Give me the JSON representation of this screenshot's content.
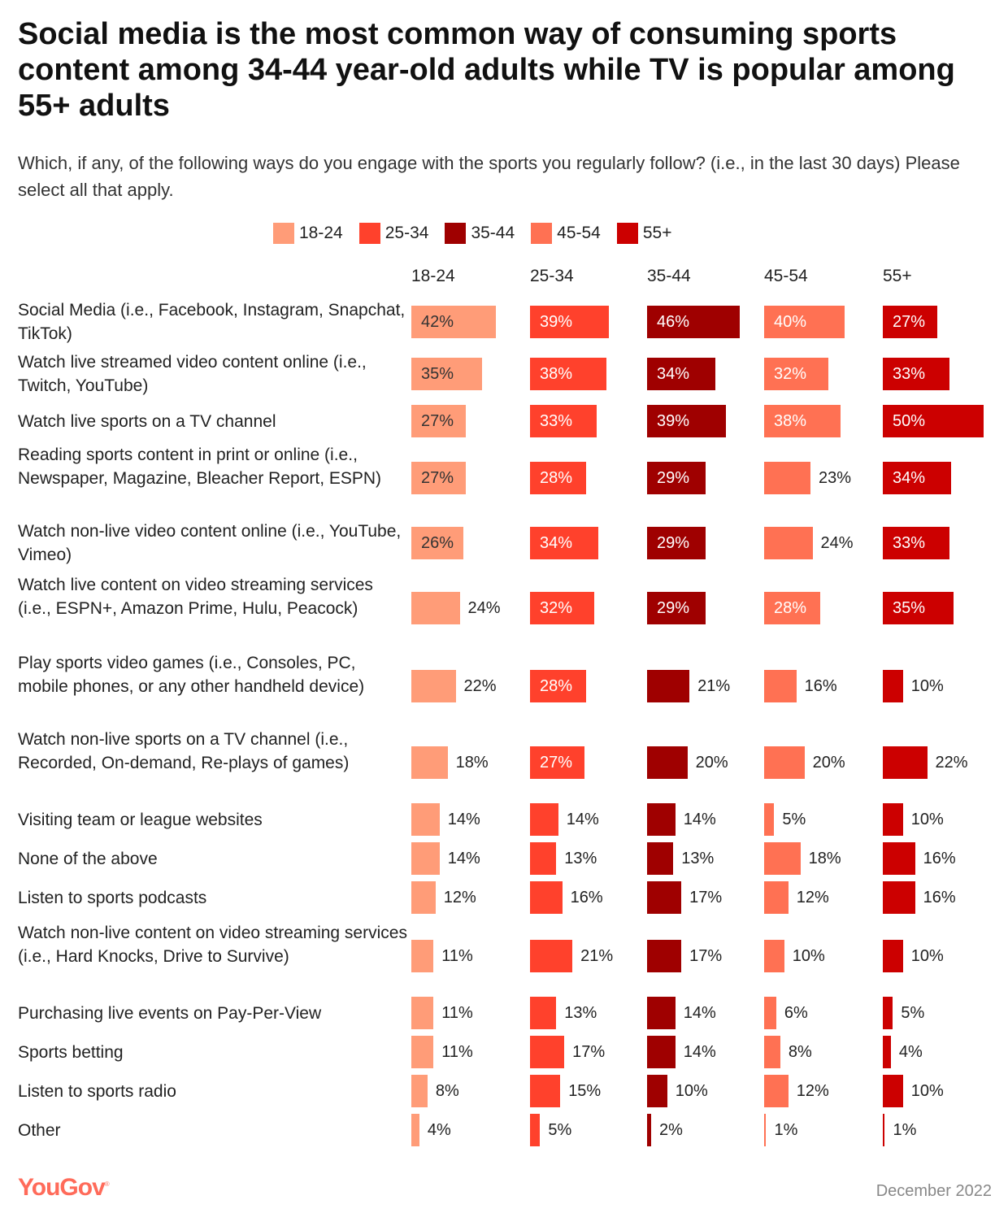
{
  "title": "Social media is the most common way of consuming sports content among 34-44 year-old adults while TV is popular among 55+ adults",
  "subtitle": "Which, if any, of the following ways do you engage with the sports you regularly follow? (i.e., in the last 30 days) Please select all that apply.",
  "footer": {
    "logo": "YouGov",
    "date": "December 2022"
  },
  "chart_data": {
    "type": "bar",
    "orientation": "horizontal-small-multiples",
    "title": "Social media is the most common way of consuming sports content among 34-44 year-old adults while TV is popular among 55+ adults",
    "legend_position": "top",
    "series": [
      {
        "name": "18-24",
        "color": "#FF9C78",
        "values": [
          42,
          35,
          27,
          27,
          26,
          24,
          22,
          18,
          14,
          14,
          12,
          11,
          11,
          11,
          8,
          4
        ]
      },
      {
        "name": "25-34",
        "color": "#FF412C",
        "values": [
          39,
          38,
          33,
          28,
          34,
          32,
          28,
          27,
          14,
          13,
          16,
          21,
          13,
          17,
          15,
          5
        ]
      },
      {
        "name": "35-44",
        "color": "#9F0000",
        "values": [
          46,
          34,
          39,
          29,
          29,
          29,
          21,
          20,
          14,
          13,
          17,
          17,
          14,
          14,
          10,
          2
        ]
      },
      {
        "name": "45-54",
        "color": "#FF7153",
        "values": [
          40,
          32,
          38,
          23,
          24,
          28,
          16,
          20,
          5,
          18,
          12,
          10,
          6,
          8,
          12,
          1
        ]
      },
      {
        "name": "55+",
        "color": "#CC0000",
        "values": [
          27,
          33,
          50,
          34,
          33,
          35,
          10,
          22,
          10,
          16,
          16,
          10,
          5,
          4,
          10,
          1
        ]
      }
    ],
    "categories": [
      "Social Media (i.e., Facebook, Instagram, Snapchat, TikTok)",
      "Watch live streamed video content online (i.e., Twitch, YouTube)",
      "Watch live sports on a TV channel",
      "Reading sports content in print or online (i.e., Newspaper, Magazine, Bleacher Report, ESPN)",
      "Watch non-live video content online (i.e., YouTube, Vimeo)",
      "Watch live content on video streaming services (i.e., ESPN+, Amazon Prime, Hulu, Peacock)",
      "Play sports video games (i.e., Consoles, PC, mobile phones, or any other handheld device)",
      "Watch non-live sports on a TV channel (i.e., Recorded, On-demand, Re-plays of games)",
      "Visiting team or league websites",
      "None of the above",
      "Listen to sports podcasts",
      "Watch non-live content on video streaming services (i.e., Hard Knocks, Drive to Survive)",
      "Purchasing live events on Pay-Per-View",
      "Sports betting",
      "Listen to sports radio",
      "Other"
    ],
    "value_format": "percent",
    "xlim": [
      0,
      50
    ]
  }
}
